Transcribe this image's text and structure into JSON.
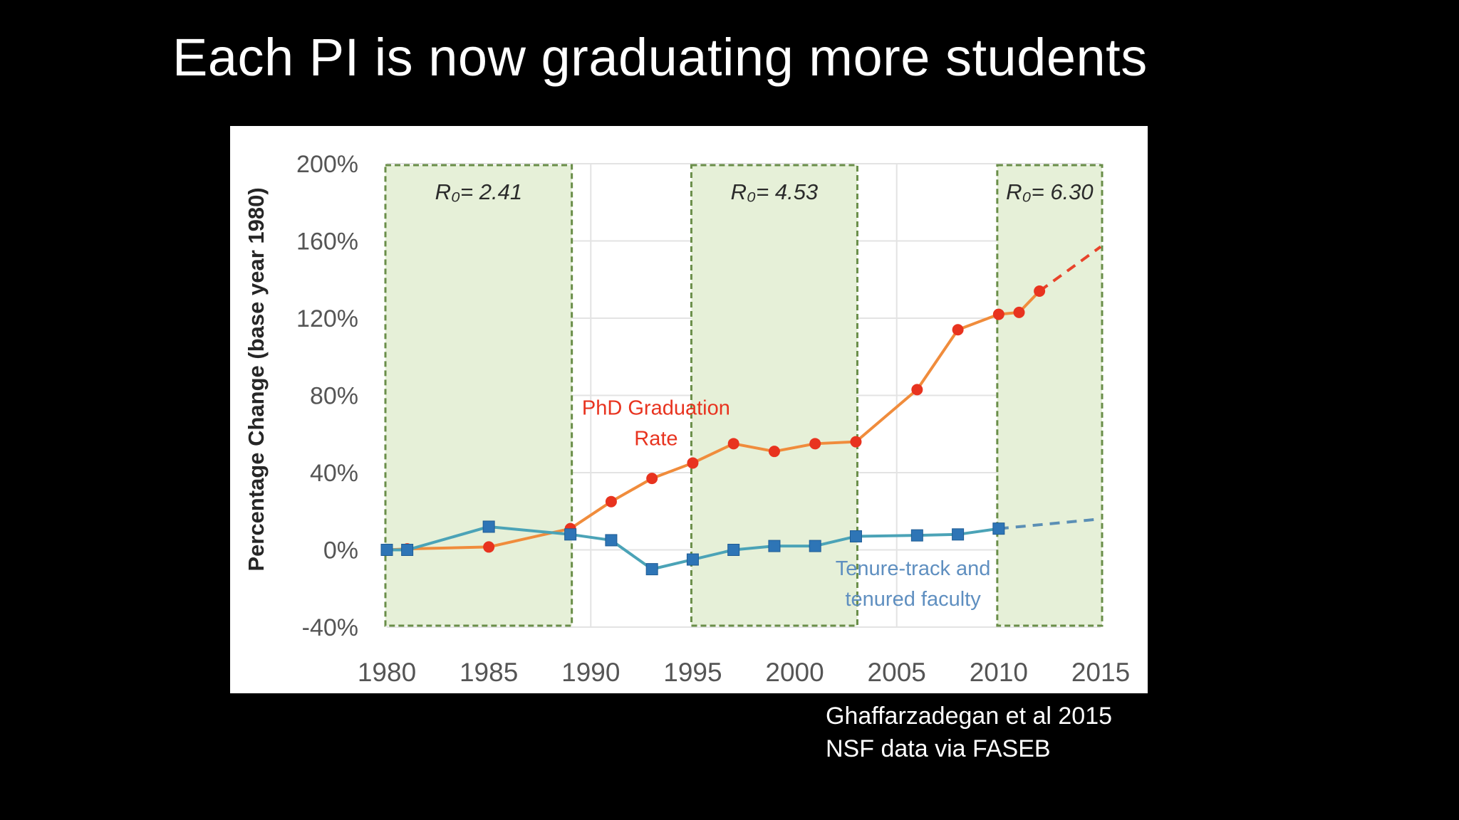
{
  "slide": {
    "title": "Each PI is now graduating more students",
    "source_lines": [
      "Ghaffarzadegan et al 2015",
      "NSF data via FASEB"
    ]
  },
  "chart_data": {
    "type": "line",
    "title": "",
    "xlabel": "",
    "ylabel": "Percentage Change (base year 1980)",
    "xlim": [
      1980,
      2015
    ],
    "ylim": [
      -40,
      200
    ],
    "x_ticks": [
      1980,
      1985,
      1990,
      1995,
      2000,
      2005,
      2010,
      2015
    ],
    "y_ticks": [
      -40,
      0,
      40,
      80,
      120,
      160,
      200
    ],
    "y_tick_suffix": "%",
    "grid": true,
    "shaded_periods": [
      {
        "x_start": 1980,
        "x_end": 1989,
        "label": "R₀= 2.41"
      },
      {
        "x_start": 1995,
        "x_end": 2003,
        "label": "R₀= 4.53"
      },
      {
        "x_start": 2010,
        "x_end": 2015,
        "label": "R₀= 6.30"
      }
    ],
    "series": [
      {
        "name": "PhD Graduation Rate",
        "label_lines": [
          "PhD Graduation",
          "Rate"
        ],
        "label_anchor": {
          "x": 1993.2,
          "y": 70
        },
        "color": "#e8331f",
        "line_color": "#f08c3c",
        "marker": "circle",
        "x": [
          1980,
          1981,
          1985,
          1989,
          1991,
          1993,
          1995,
          1997,
          1999,
          2001,
          2003,
          2006,
          2008,
          2010,
          2011,
          2012
        ],
        "y": [
          0,
          0.5,
          1.5,
          11,
          25,
          37,
          45,
          55,
          51,
          55,
          56,
          83,
          114,
          122,
          123,
          134
        ],
        "projection": {
          "x": [
            2012,
            2015
          ],
          "y": [
            134,
            157
          ]
        }
      },
      {
        "name": "Tenure-track and tenured faculty",
        "label_lines": [
          "Tenure-track and",
          "tenured faculty"
        ],
        "label_anchor": {
          "x": 2005.8,
          "y": -13
        },
        "color": "#2e75b6",
        "line_color": "#4ba3b7",
        "marker": "square",
        "x": [
          1980,
          1981,
          1985,
          1989,
          1991,
          1993,
          1995,
          1997,
          1999,
          2001,
          2003,
          2006,
          2008,
          2010
        ],
        "y": [
          0,
          0,
          12,
          8,
          5,
          -10,
          -5,
          0,
          2,
          2,
          7,
          7.5,
          8,
          11
        ],
        "projection": {
          "x": [
            2010,
            2015
          ],
          "y": [
            11,
            16
          ]
        }
      }
    ]
  }
}
